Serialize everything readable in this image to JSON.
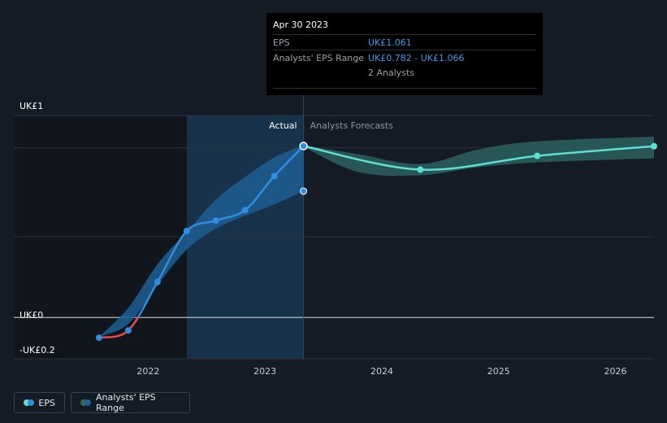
{
  "colors": {
    "background": "#151b24",
    "actual_line": "#2f8ee0",
    "negative_line": "#e84a4a",
    "forecast_line": "#5de0cf",
    "actual_band": "#1d5e93",
    "forecast_band": "#2f6a66",
    "highlight": "#17324a",
    "past_shade": "#11161d"
  },
  "tooltip": {
    "date": "Apr 30 2023",
    "eps_label": "EPS",
    "eps_value": "UK£1.061",
    "range_label": "Analysts' EPS Range",
    "range_value": "UK£0.782 - UK£1.066",
    "analysts": "2 Analysts"
  },
  "legend": {
    "eps": "EPS",
    "range": "Analysts' EPS Range"
  },
  "chart_data": {
    "type": "line",
    "y_tick_labels": [
      {
        "label": "UK£1",
        "value": 1.25
      },
      {
        "label": "UK£0",
        "value": 0
      },
      {
        "label": "-UK£0.2",
        "value": -0.2
      }
    ],
    "x_tick_labels": [
      {
        "label": "2022",
        "value": 2022.0
      },
      {
        "label": "2023",
        "value": 2023.0
      },
      {
        "label": "2024",
        "value": 2024.0
      },
      {
        "label": "2025",
        "value": 2025.0
      },
      {
        "label": "2026",
        "value": 2026.0
      }
    ],
    "xlim": [
      2020.85,
      2026.33
    ],
    "ylim": [
      -0.2,
      1.25
    ],
    "divider_labels": {
      "actual": "Actual",
      "forecast": "Analysts Forecasts"
    },
    "divider_x": 2023.33,
    "shaded_past_until": 2022.33,
    "series": [
      {
        "kind": "eps_actual",
        "points": [
          [
            2021.58,
            -0.125
          ],
          [
            2021.83,
            -0.08
          ],
          [
            2022.08,
            0.22
          ],
          [
            2022.33,
            0.535
          ],
          [
            2022.58,
            0.6
          ],
          [
            2022.83,
            0.665
          ],
          [
            2023.08,
            0.875
          ],
          [
            2023.33,
            1.061
          ]
        ]
      },
      {
        "kind": "eps_forecast",
        "points": [
          [
            2023.33,
            1.061
          ],
          [
            2024.33,
            0.915
          ],
          [
            2025.33,
            1.0
          ],
          [
            2026.33,
            1.06
          ]
        ]
      },
      {
        "kind": "actual_range_band",
        "upper": [
          [
            2021.58,
            -0.12
          ],
          [
            2021.83,
            0.06
          ],
          [
            2022.08,
            0.33
          ],
          [
            2022.33,
            0.53
          ],
          [
            2022.58,
            0.73
          ],
          [
            2022.83,
            0.87
          ],
          [
            2023.08,
            0.99
          ],
          [
            2023.33,
            1.066
          ]
        ],
        "lower": [
          [
            2021.58,
            -0.12
          ],
          [
            2021.83,
            -0.04
          ],
          [
            2022.08,
            0.2
          ],
          [
            2022.33,
            0.42
          ],
          [
            2022.58,
            0.55
          ],
          [
            2022.83,
            0.63
          ],
          [
            2023.08,
            0.7
          ],
          [
            2023.33,
            0.782
          ]
        ]
      },
      {
        "kind": "forecast_range_band",
        "upper": [
          [
            2023.33,
            1.066
          ],
          [
            2023.8,
            1.01
          ],
          [
            2024.33,
            0.95
          ],
          [
            2024.83,
            1.04
          ],
          [
            2025.33,
            1.09
          ],
          [
            2026.33,
            1.12
          ]
        ],
        "lower": [
          [
            2023.33,
            1.056
          ],
          [
            2023.8,
            0.9
          ],
          [
            2024.33,
            0.88
          ],
          [
            2024.83,
            0.93
          ],
          [
            2025.33,
            0.96
          ],
          [
            2026.33,
            0.985
          ]
        ]
      },
      {
        "kind": "range_low_marker",
        "points": [
          [
            2023.33,
            0.782
          ]
        ]
      }
    ]
  }
}
